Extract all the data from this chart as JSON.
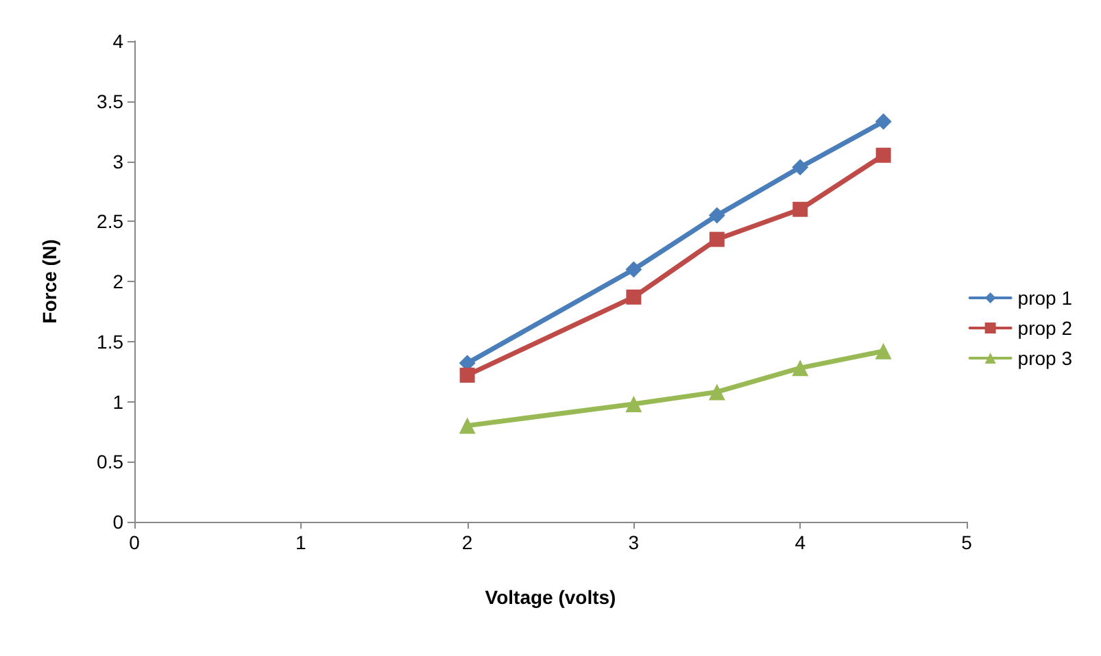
{
  "chart_data": {
    "type": "line",
    "xlabel": "Voltage (volts)",
    "ylabel": "Force (N)",
    "x": [
      2,
      3,
      3.5,
      4,
      4.5
    ],
    "series": [
      {
        "name": "prop 1",
        "color": "#4a7ebb",
        "marker": "diamond",
        "values": [
          1.32,
          2.1,
          2.55,
          2.95,
          3.33
        ]
      },
      {
        "name": "prop 2",
        "color": "#be4b48",
        "marker": "square",
        "values": [
          1.22,
          1.87,
          2.35,
          2.6,
          3.05
        ]
      },
      {
        "name": "prop 3",
        "color": "#98b954",
        "marker": "triangle",
        "values": [
          0.8,
          0.98,
          1.08,
          1.28,
          1.42
        ]
      }
    ],
    "xlim": [
      0,
      5
    ],
    "xticks": [
      0,
      1,
      2,
      3,
      4,
      5
    ],
    "ylim": [
      0,
      4
    ],
    "yticks": [
      0,
      0.5,
      1,
      1.5,
      2,
      2.5,
      3,
      3.5,
      4
    ],
    "legend": "right"
  }
}
